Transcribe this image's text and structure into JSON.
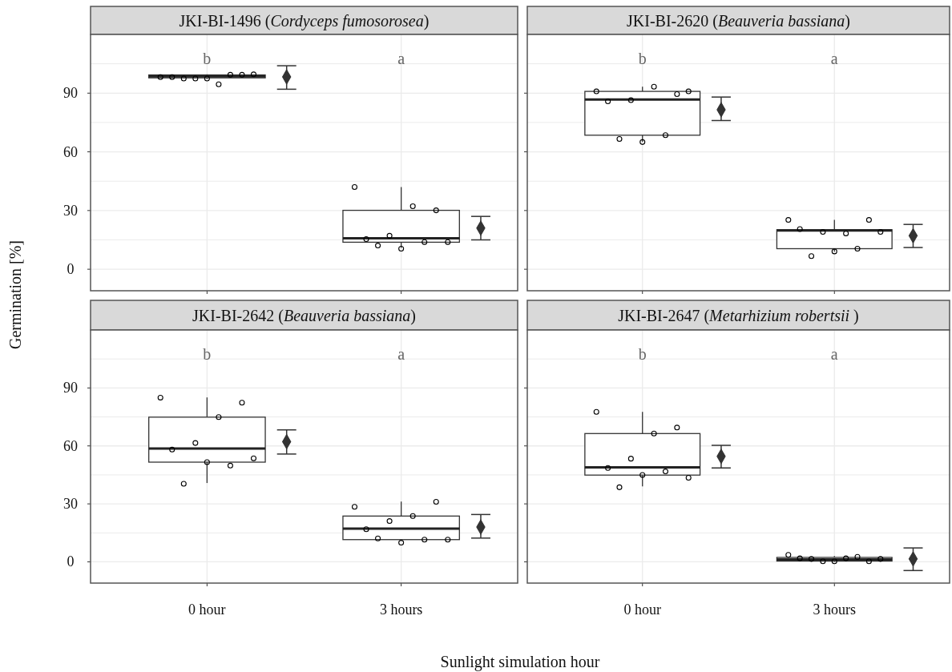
{
  "chart_data": [
    {
      "type": "box",
      "title": "JKI-BI-1496 (Cordyceps fumosorosea)",
      "ylabel": "Germination [%]",
      "categories": [
        "0 hour",
        "3 hours"
      ],
      "ylim": [
        -11,
        120
      ],
      "yticks": [
        0,
        {
          "value": 15,
          "label": null
        },
        30,
        {
          "value": 45,
          "label": null
        },
        60,
        {
          "value": 75,
          "label": null
        },
        90,
        {
          "value": 105,
          "label": null
        }
      ],
      "grid": true,
      "tick_labels": "y",
      "boxes": [
        {
          "low": 97.2,
          "q1": 97.8,
          "median": 98.6,
          "q3": 99.3,
          "high": 99.6
        },
        {
          "low": 10.9,
          "q1": 13.8,
          "median": 15.8,
          "q3": 30.1,
          "high": 42
        }
      ],
      "series": [
        {
          "type": "scatter",
          "marker": "circle",
          "color": "#000000",
          "x": [
            "0 hour",
            "0 hour",
            "0 hour",
            "0 hour",
            "0 hour",
            "0 hour",
            "0 hour",
            "0 hour",
            "0 hour",
            "3 hours",
            "3 hours",
            "3 hours",
            "3 hours",
            "3 hours",
            "3 hours",
            "3 hours",
            "3 hours",
            "3 hours"
          ],
          "values": [
            98.2,
            99.4,
            94.5,
            97.5,
            98.2,
            99.6,
            99.4,
            97.5,
            97.5,
            42,
            30.1,
            32.2,
            17.1,
            15.4,
            13.9,
            13.9,
            10.5,
            12.1
          ]
        },
        {
          "type": "scatter",
          "marker": "diamond",
          "color": "#333333",
          "x": [
            "0 hour",
            "3 hours"
          ],
          "values": [
            98.3,
            21
          ],
          "errors": [
            [
              92,
              104
            ],
            [
              15,
              27
            ]
          ]
        }
      ],
      "annotations": [
        "b",
        "a"
      ]
    },
    {
      "type": "box",
      "title": "JKI-BI-2620 (Beauveria bassiana)",
      "categories": [
        "0 hour",
        "3 hours"
      ],
      "ylim": [
        -11,
        120
      ],
      "yticks": [
        0,
        {
          "value": 15,
          "label": null
        },
        30,
        {
          "value": 45,
          "label": null
        },
        60,
        {
          "value": 75,
          "label": null
        },
        90,
        {
          "value": 105,
          "label": null
        }
      ],
      "grid": true,
      "tick_labels": false,
      "boxes": [
        {
          "low": 65,
          "q1": 68.5,
          "median": 86.7,
          "q3": 90.9,
          "high": 93.3
        },
        {
          "low": 9,
          "q1": 10.5,
          "median": 19.8,
          "q3": 20.2,
          "high": 25.2
        }
      ],
      "series": [
        {
          "type": "scatter",
          "marker": "circle",
          "color": "#000000",
          "x": [
            "0 hour",
            "0 hour",
            "0 hour",
            "0 hour",
            "0 hour",
            "0 hour",
            "0 hour",
            "0 hour",
            "0 hour",
            "3 hours",
            "3 hours",
            "3 hours",
            "3 hours",
            "3 hours",
            "3 hours",
            "3 hours",
            "3 hours",
            "3 hours"
          ],
          "values": [
            90.9,
            89.5,
            93.3,
            86.4,
            85.8,
            90.9,
            68.5,
            65,
            66.6,
            25.2,
            25.2,
            18.3,
            19.1,
            20.5,
            19.1,
            10.5,
            9.1,
            6.7
          ]
        },
        {
          "type": "scatter",
          "marker": "diamond",
          "color": "#333333",
          "x": [
            "0 hour",
            "3 hours"
          ],
          "values": [
            81.5,
            17.1
          ],
          "errors": [
            [
              76,
              88
            ],
            [
              11.1,
              22.9
            ]
          ]
        }
      ],
      "annotations": [
        "b",
        "a"
      ]
    },
    {
      "type": "box",
      "title": "JKI-BI-2642 (Beauveria bassiana)",
      "xlabel": "Sunlight simulation hour",
      "categories": [
        "0 hour",
        "3 hours"
      ],
      "ylim": [
        -11,
        120
      ],
      "yticks": [
        0,
        {
          "value": 15,
          "label": null
        },
        30,
        {
          "value": 45,
          "label": null
        },
        60,
        {
          "value": 75,
          "label": null
        },
        90,
        {
          "value": 105,
          "label": null
        }
      ],
      "grid": true,
      "boxes": [
        {
          "low": 40.8,
          "q1": 51.6,
          "median": 58.6,
          "q3": 74.9,
          "high": 85.1
        },
        {
          "low": 11,
          "q1": 11.5,
          "median": 17.2,
          "q3": 23.7,
          "high": 31.2
        }
      ],
      "series": [
        {
          "type": "scatter",
          "marker": "circle",
          "color": "#000000",
          "x": [
            "0 hour",
            "0 hour",
            "0 hour",
            "0 hour",
            "0 hour",
            "0 hour",
            "0 hour",
            "0 hour",
            "0 hour",
            "3 hours",
            "3 hours",
            "3 hours",
            "3 hours",
            "3 hours",
            "3 hours",
            "3 hours",
            "3 hours",
            "3 hours"
          ],
          "values": [
            85,
            82.4,
            74.9,
            61.5,
            58.1,
            53.6,
            49.8,
            51.6,
            40.4,
            28.5,
            31.1,
            23.7,
            21.1,
            16.9,
            11.5,
            11.5,
            9.9,
            12.1
          ]
        },
        {
          "type": "scatter",
          "marker": "diamond",
          "color": "#333333",
          "x": [
            "0 hour",
            "3 hours"
          ],
          "values": [
            62.2,
            18
          ],
          "errors": [
            [
              55.8,
              68.3
            ],
            [
              12.3,
              24.5
            ]
          ]
        }
      ],
      "annotations": [
        "b",
        "a"
      ]
    },
    {
      "type": "box",
      "title": "JKI-BI-2647 (Metarhizium robertsii )",
      "categories": [
        "0 hour",
        "3 hours"
      ],
      "ylim": [
        -11,
        120
      ],
      "yticks": [
        0,
        {
          "value": 15,
          "label": null
        },
        30,
        {
          "value": 45,
          "label": null
        },
        60,
        {
          "value": 75,
          "label": null
        },
        90,
        {
          "value": 105,
          "label": null
        }
      ],
      "grid": true,
      "tick_labels": "x",
      "boxes": [
        {
          "low": 39.1,
          "q1": 44.9,
          "median": 48.9,
          "q3": 66.4,
          "high": 77.6
        },
        {
          "low": 0,
          "q1": 0.4,
          "median": 1.2,
          "q3": 2.3,
          "high": 3
        }
      ],
      "series": [
        {
          "type": "scatter",
          "marker": "circle",
          "color": "#000000",
          "x": [
            "0 hour",
            "0 hour",
            "0 hour",
            "0 hour",
            "0 hour",
            "0 hour",
            "0 hour",
            "0 hour",
            "0 hour",
            "3 hours",
            "3 hours",
            "3 hours",
            "3 hours",
            "3 hours",
            "3 hours",
            "3 hours",
            "3 hours",
            "3 hours"
          ],
          "values": [
            77.6,
            69.5,
            66.4,
            53.4,
            48.6,
            43.5,
            46.8,
            45,
            38.6,
            3.6,
            0.3,
            1.8,
            0.3,
            1.8,
            1.5,
            2.6,
            0.3,
            1.5
          ]
        },
        {
          "type": "scatter",
          "marker": "diamond",
          "color": "#333333",
          "x": [
            "0 hour",
            "3 hours"
          ],
          "values": [
            54.6,
            1.5
          ],
          "errors": [
            [
              48.6,
              60.3
            ],
            [
              -4.5,
              7.2
            ]
          ]
        }
      ],
      "annotations": [
        "b",
        "a"
      ]
    }
  ]
}
